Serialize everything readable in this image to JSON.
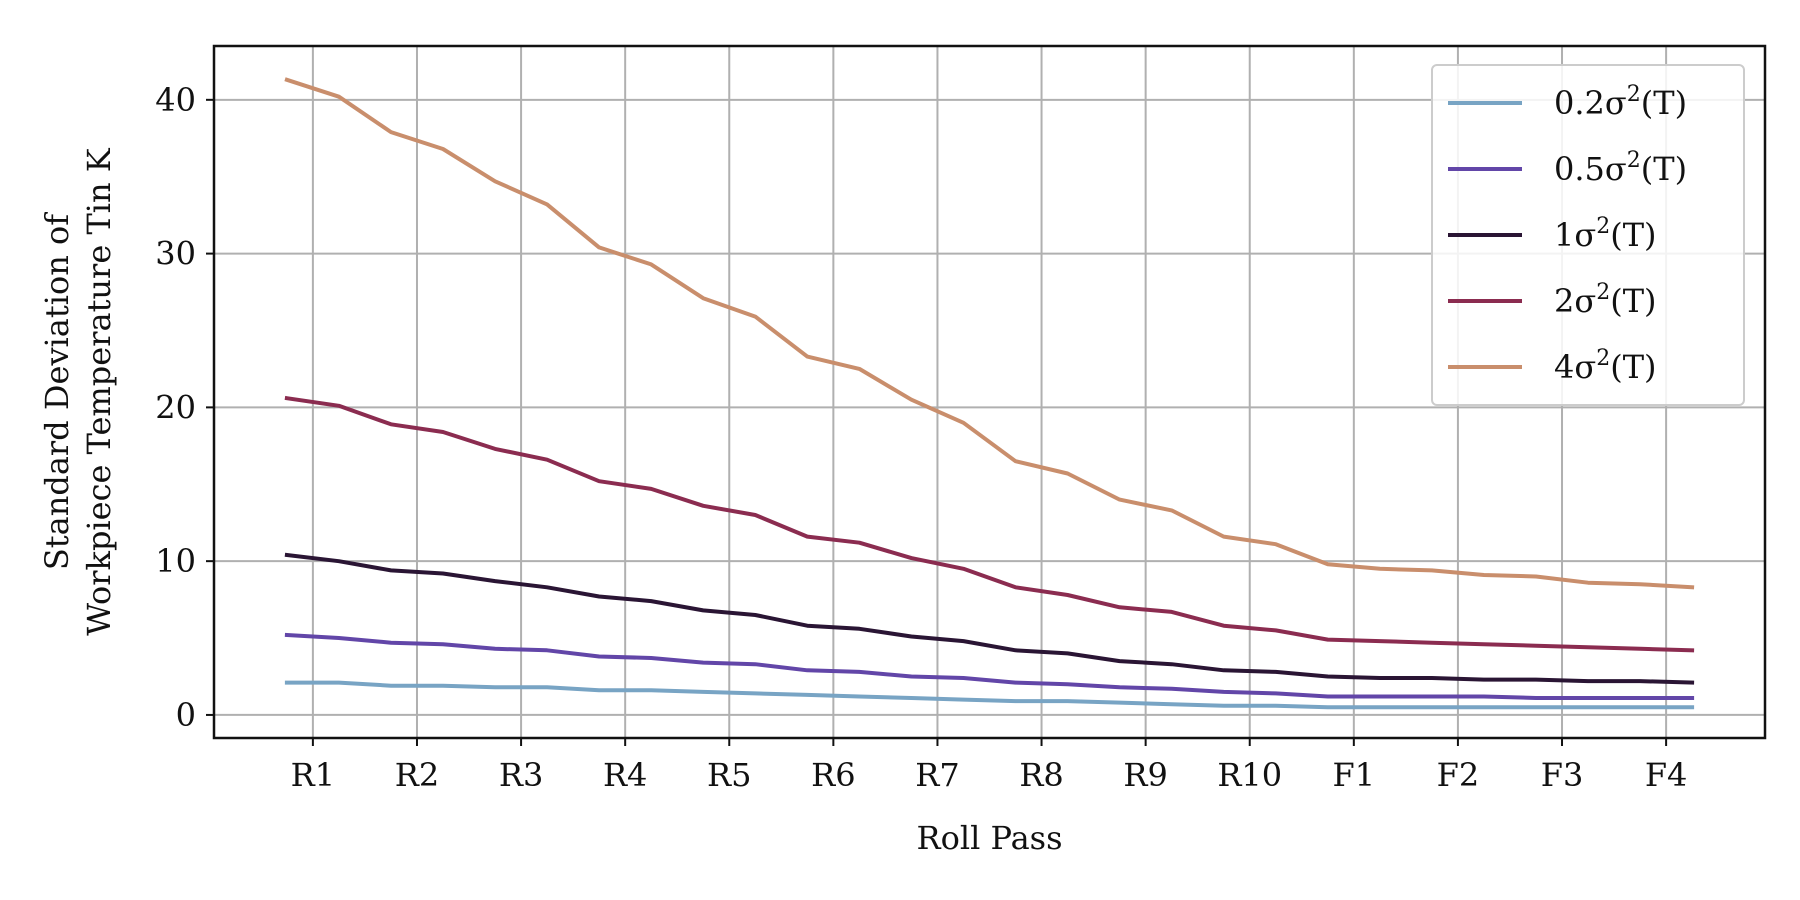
{
  "chart_data": {
    "type": "line",
    "xlabel": "Roll Pass",
    "ylabel": [
      "Standard Deviation of",
      "Workpiece Temperature Tin K"
    ],
    "categories": [
      "R1",
      "R2",
      "R3",
      "R4",
      "R5",
      "R6",
      "R7",
      "R8",
      "R9",
      "R10",
      "F1",
      "F2",
      "F3",
      "F4"
    ],
    "yticks": [
      0,
      10,
      20,
      30,
      40
    ],
    "ylim": [
      -1.5,
      43.5
    ],
    "xlim": [
      -0.95,
      13.95
    ],
    "grid": true,
    "legend_position": "top-right",
    "series": [
      {
        "name": "0.2σ²(T)",
        "base": "0.2σ",
        "sup": "2",
        "tail": "(T)",
        "color": "#78a4c4",
        "x": [
          -0.25,
          0.25,
          0.75,
          1.25,
          1.75,
          2.25,
          2.75,
          3.25,
          3.75,
          4.25,
          4.75,
          5.25,
          5.75,
          6.25,
          6.75,
          7.25,
          7.75,
          8.25,
          8.75,
          9.25,
          9.75,
          10.25,
          10.75,
          11.25,
          11.75,
          12.25,
          12.75,
          13.25
        ],
        "values": [
          2.1,
          2.1,
          1.9,
          1.9,
          1.8,
          1.8,
          1.6,
          1.6,
          1.5,
          1.4,
          1.3,
          1.2,
          1.1,
          1.0,
          0.9,
          0.9,
          0.8,
          0.7,
          0.6,
          0.6,
          0.5,
          0.5,
          0.5,
          0.5,
          0.5,
          0.5,
          0.5,
          0.5
        ]
      },
      {
        "name": "0.5σ²(T)",
        "base": "0.5σ",
        "sup": "2",
        "tail": "(T)",
        "color": "#6246a8",
        "x": [
          -0.25,
          0.25,
          0.75,
          1.25,
          1.75,
          2.25,
          2.75,
          3.25,
          3.75,
          4.25,
          4.75,
          5.25,
          5.75,
          6.25,
          6.75,
          7.25,
          7.75,
          8.25,
          8.75,
          9.25,
          9.75,
          10.25,
          10.75,
          11.25,
          11.75,
          12.25,
          12.75,
          13.25
        ],
        "values": [
          5.2,
          5.0,
          4.7,
          4.6,
          4.3,
          4.2,
          3.8,
          3.7,
          3.4,
          3.3,
          2.9,
          2.8,
          2.5,
          2.4,
          2.1,
          2.0,
          1.8,
          1.7,
          1.5,
          1.4,
          1.2,
          1.2,
          1.2,
          1.2,
          1.1,
          1.1,
          1.1,
          1.1
        ]
      },
      {
        "name": "1σ²(T)",
        "base": "1σ",
        "sup": "2",
        "tail": "(T)",
        "color": "#2a1534",
        "x": [
          -0.25,
          0.25,
          0.75,
          1.25,
          1.75,
          2.25,
          2.75,
          3.25,
          3.75,
          4.25,
          4.75,
          5.25,
          5.75,
          6.25,
          6.75,
          7.25,
          7.75,
          8.25,
          8.75,
          9.25,
          9.75,
          10.25,
          10.75,
          11.25,
          11.75,
          12.25,
          12.75,
          13.25
        ],
        "values": [
          10.4,
          10.0,
          9.4,
          9.2,
          8.7,
          8.3,
          7.7,
          7.4,
          6.8,
          6.5,
          5.8,
          5.6,
          5.1,
          4.8,
          4.2,
          4.0,
          3.5,
          3.3,
          2.9,
          2.8,
          2.5,
          2.4,
          2.4,
          2.3,
          2.3,
          2.2,
          2.2,
          2.1
        ]
      },
      {
        "name": "2σ²(T)",
        "base": "2σ",
        "sup": "2",
        "tail": "(T)",
        "color": "#8b2c50",
        "x": [
          -0.25,
          0.25,
          0.75,
          1.25,
          1.75,
          2.25,
          2.75,
          3.25,
          3.75,
          4.25,
          4.75,
          5.25,
          5.75,
          6.25,
          6.75,
          7.25,
          7.75,
          8.25,
          8.75,
          9.25,
          9.75,
          10.25,
          10.75,
          11.25,
          11.75,
          12.25,
          12.75,
          13.25
        ],
        "values": [
          20.6,
          20.1,
          18.9,
          18.4,
          17.3,
          16.6,
          15.2,
          14.7,
          13.6,
          13.0,
          11.6,
          11.2,
          10.2,
          9.5,
          8.3,
          7.8,
          7.0,
          6.7,
          5.8,
          5.5,
          4.9,
          4.8,
          4.7,
          4.6,
          4.5,
          4.4,
          4.3,
          4.2
        ]
      },
      {
        "name": "4σ²(T)",
        "base": "4σ",
        "sup": "2",
        "tail": "(T)",
        "color": "#c98e6c",
        "x": [
          -0.25,
          0.25,
          0.75,
          1.25,
          1.75,
          2.25,
          2.75,
          3.25,
          3.75,
          4.25,
          4.75,
          5.25,
          5.75,
          6.25,
          6.75,
          7.25,
          7.75,
          8.25,
          8.75,
          9.25,
          9.75,
          10.25,
          10.75,
          11.25,
          11.75,
          12.25,
          12.75,
          13.25
        ],
        "values": [
          41.3,
          40.2,
          37.9,
          36.8,
          34.7,
          33.2,
          30.4,
          29.3,
          27.1,
          25.9,
          23.3,
          22.5,
          20.5,
          19.0,
          16.5,
          15.7,
          14.0,
          13.3,
          11.6,
          11.1,
          9.8,
          9.5,
          9.4,
          9.1,
          9.0,
          8.6,
          8.5,
          8.3
        ]
      }
    ]
  }
}
